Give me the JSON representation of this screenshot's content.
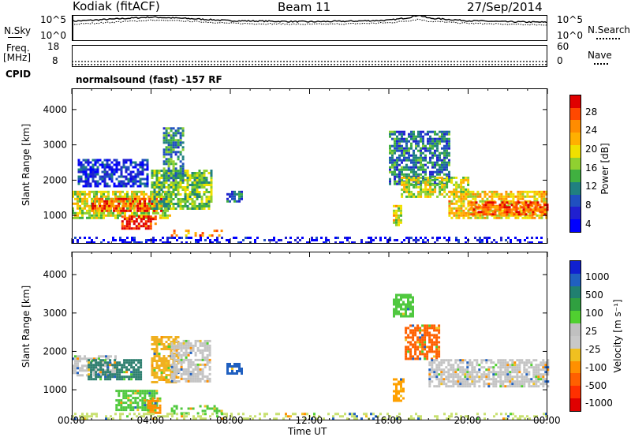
{
  "header": {
    "station": "Kodiak (fitACF)",
    "beam": "Beam 11",
    "date": "27/Sep/2014"
  },
  "left_labels": {
    "nsky": "N.Sky",
    "freq": "Freq.",
    "freq_unit": "[MHz]",
    "cpid": "CPID"
  },
  "right_labels": {
    "nsearch": "N.Search",
    "nave": "Nave"
  },
  "cpid_text": "normalsound (fast) -157 RF",
  "chart_data": [
    {
      "type": "line",
      "name": "noise-panel",
      "y_ticks_left": [
        "10^5",
        "10^0"
      ],
      "y_ticks_right": [
        "10^5",
        "10^0"
      ],
      "x": [
        0,
        2,
        4,
        6,
        8,
        10,
        12,
        14,
        16,
        17,
        17.5,
        18,
        20,
        22,
        24
      ],
      "series": [
        {
          "values": [
            3.8,
            4.2,
            4.6,
            4.3,
            3.9,
            3.8,
            3.7,
            3.8,
            4.0,
            4.5,
            5.0,
            4.4,
            3.9,
            3.7,
            3.6
          ]
        },
        {
          "values": [
            3.2,
            3.6,
            4.0,
            3.8,
            3.4,
            3.3,
            3.2,
            3.3,
            3.5,
            3.9,
            4.2,
            3.8,
            3.4,
            3.2,
            3.1
          ]
        }
      ],
      "ylim": [
        0,
        5
      ]
    },
    {
      "type": "line",
      "name": "freq-panel",
      "y_ticks_left": [
        "18",
        "8"
      ],
      "y_ticks_right": [
        "60",
        "0"
      ],
      "x": [
        0,
        24
      ],
      "series": [
        {
          "values": [
            10.5,
            10.5
          ]
        },
        {
          "values": [
            10.2,
            10.2
          ]
        }
      ],
      "ylim": [
        8,
        18
      ]
    },
    {
      "type": "heatmap",
      "name": "power-panel",
      "ylabel": "Slant Range [km]",
      "yticks": [
        1000,
        2000,
        3000,
        4000
      ],
      "ylim": [
        200,
        4600
      ],
      "xlim": [
        0,
        24
      ],
      "colorbar_label": "Power [dB]",
      "colorbar_ticks": [
        "28",
        "24",
        "20",
        "16",
        "12",
        "8",
        "4"
      ],
      "colorbar_colors": [
        "#e00000",
        "#ff4800",
        "#ff8c00",
        "#ffb000",
        "#f0e000",
        "#90d030",
        "#40b040",
        "#208080",
        "#2050c0",
        "#2020d0",
        "#0000ff"
      ],
      "regions": [
        {
          "t0": 0.0,
          "t1": 5.0,
          "r0": 900,
          "r1": 1700,
          "level": 0.55
        },
        {
          "t0": 1.0,
          "t1": 4.5,
          "r0": 1100,
          "r1": 1500,
          "level": 0.85
        },
        {
          "t0": 2.5,
          "t1": 4.2,
          "r0": 600,
          "r1": 1000,
          "level": 0.95
        },
        {
          "t0": 4.0,
          "t1": 7.0,
          "r0": 1200,
          "r1": 2300,
          "level": 0.45
        },
        {
          "t0": 4.6,
          "t1": 5.6,
          "r0": 2000,
          "r1": 3500,
          "level": 0.35
        },
        {
          "t0": 0.3,
          "t1": 3.8,
          "r0": 1800,
          "r1": 2600,
          "level": 0.15
        },
        {
          "t0": 5.0,
          "t1": 7.6,
          "r0": 400,
          "r1": 600,
          "level": 0.75
        },
        {
          "t0": 7.8,
          "t1": 8.6,
          "r0": 1400,
          "r1": 1700,
          "level": 0.25
        },
        {
          "t0": 16.2,
          "t1": 16.6,
          "r0": 700,
          "r1": 1300,
          "level": 0.6
        },
        {
          "t0": 16.0,
          "t1": 19.0,
          "r0": 1900,
          "r1": 3400,
          "level": 0.3
        },
        {
          "t0": 16.6,
          "t1": 20.0,
          "r0": 1500,
          "r1": 2100,
          "level": 0.55
        },
        {
          "t0": 19.0,
          "t1": 24.0,
          "r0": 900,
          "r1": 1700,
          "level": 0.65
        },
        {
          "t0": 20.0,
          "t1": 24.0,
          "r0": 1050,
          "r1": 1400,
          "level": 0.85
        },
        {
          "t0": 0.0,
          "t1": 24.0,
          "r0": 250,
          "r1": 400,
          "level": 0.05
        }
      ]
    },
    {
      "type": "heatmap",
      "name": "velocity-panel",
      "ylabel": "Slant Range [km]",
      "xlabel": "Time UT",
      "yticks": [
        1000,
        2000,
        3000,
        4000
      ],
      "xticks": [
        "00:00",
        "04:00",
        "08:00",
        "12:00",
        "16:00",
        "20:00",
        "00:00"
      ],
      "ylim": [
        200,
        4600
      ],
      "xlim": [
        0,
        24
      ],
      "colorbar_label": "Velocity [m s⁻¹]",
      "colorbar_ticks": [
        "1000",
        "500",
        "100",
        "25",
        "-25",
        "-100",
        "-500",
        "-1000"
      ],
      "colorbar_colors": [
        "#1020d0",
        "#2060c0",
        "#208070",
        "#30a040",
        "#50d030",
        "#c0c0c0",
        "#c8c8c8",
        "#f0c020",
        "#ff9000",
        "#ff6000",
        "#ff3000",
        "#e00000"
      ],
      "regions": [
        {
          "t0": 0.0,
          "t1": 2.2,
          "r0": 1400,
          "r1": 1900,
          "color": "#c4c4c4"
        },
        {
          "t0": 0.8,
          "t1": 3.5,
          "r0": 1300,
          "r1": 1800,
          "color": "#2f8070"
        },
        {
          "t0": 2.2,
          "t1": 4.3,
          "r0": 500,
          "r1": 1000,
          "color": "#50c840"
        },
        {
          "t0": 3.8,
          "t1": 4.5,
          "r0": 400,
          "r1": 800,
          "color": "#ff9000"
        },
        {
          "t0": 4.0,
          "t1": 5.4,
          "r0": 1200,
          "r1": 2400,
          "color": "#f0b020"
        },
        {
          "t0": 5.0,
          "t1": 7.6,
          "r0": 400,
          "r1": 600,
          "color": "#50c840"
        },
        {
          "t0": 5.0,
          "t1": 7.0,
          "r0": 1200,
          "r1": 2300,
          "color": "#c4c4c4"
        },
        {
          "t0": 7.8,
          "t1": 8.6,
          "r0": 1400,
          "r1": 1700,
          "color": "#2060c0"
        },
        {
          "t0": 16.2,
          "t1": 16.7,
          "r0": 700,
          "r1": 1300,
          "color": "#ffa000"
        },
        {
          "t0": 16.8,
          "t1": 18.5,
          "r0": 1800,
          "r1": 2700,
          "color": "#ff6000"
        },
        {
          "t0": 16.2,
          "t1": 17.2,
          "r0": 2900,
          "r1": 3500,
          "color": "#50c840"
        },
        {
          "t0": 18.0,
          "t1": 24.0,
          "r0": 1100,
          "r1": 1800,
          "color": "#c4c4c4"
        },
        {
          "t0": 0.0,
          "t1": 24.0,
          "r0": 250,
          "r1": 400,
          "color": "#c8e070"
        }
      ]
    }
  ]
}
